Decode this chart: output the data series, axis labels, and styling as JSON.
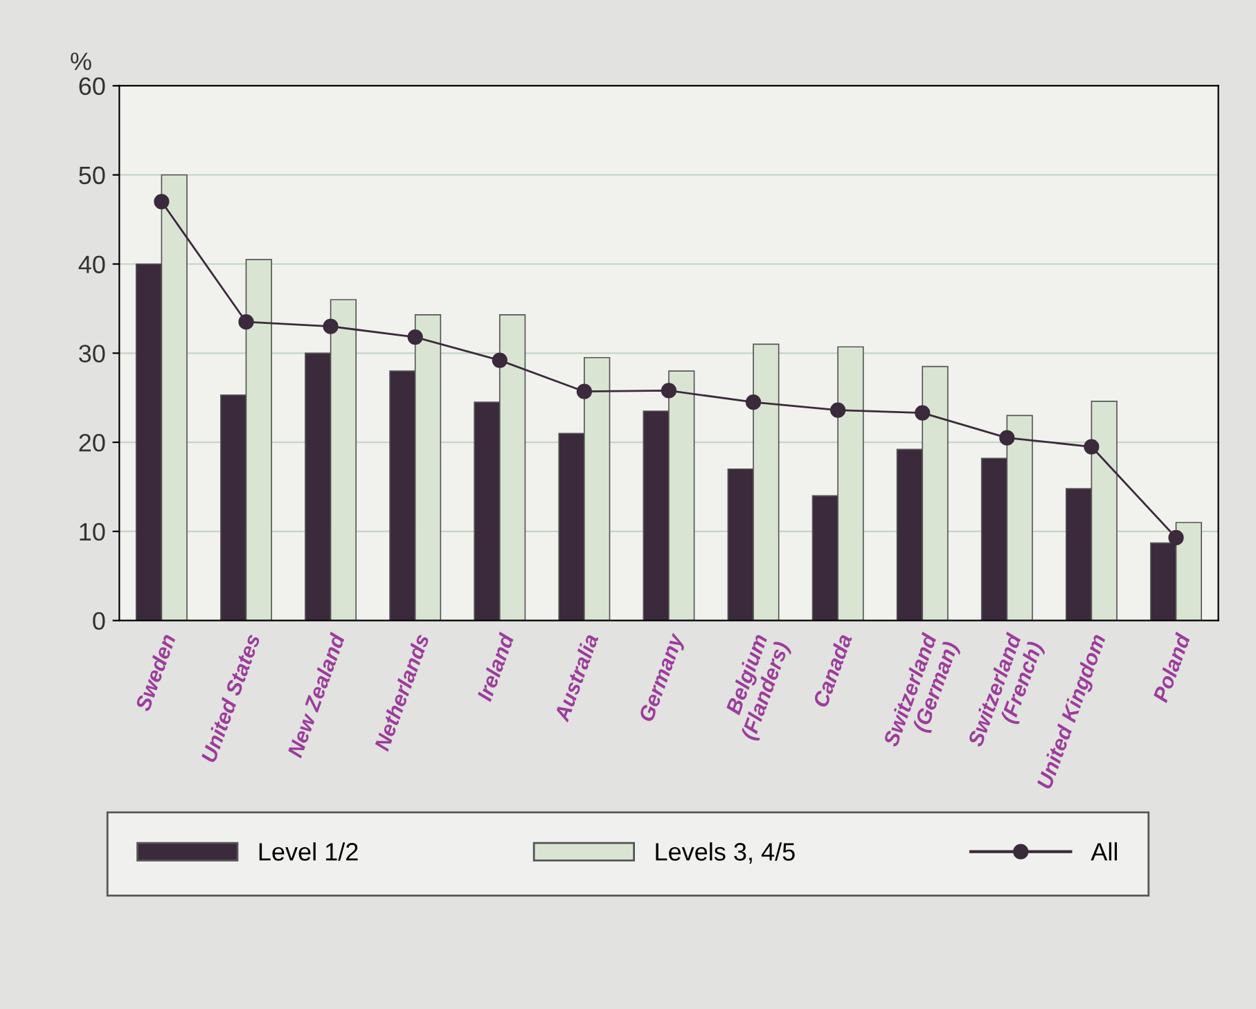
{
  "chart_data": {
    "type": "bar",
    "ylabel": "%",
    "categories": [
      "Sweden",
      "United States",
      "New Zealand",
      "Netherlands",
      "Ireland",
      "Australia",
      "Germany",
      "Belgium\n(Flanders)",
      "Canada",
      "Switzerland\n(German)",
      "Switzerland\n(French)",
      "United Kingdom",
      "Poland"
    ],
    "series": [
      {
        "name": "Level 1/2",
        "color": "#3b2a3b",
        "values": [
          40,
          25.3,
          30,
          28,
          24.5,
          21,
          23.5,
          17,
          14,
          19.2,
          18.2,
          14.8,
          8.7
        ]
      },
      {
        "name": "Levels 3, 4/5",
        "color": "#d9e5d2",
        "values": [
          50,
          40.5,
          36,
          34.3,
          34.3,
          29.5,
          28,
          31,
          30.7,
          28.5,
          23,
          24.6,
          11
        ]
      },
      {
        "name": "All",
        "type": "line",
        "color": "#3b2a3b",
        "marker": "circle",
        "values": [
          47,
          33.5,
          33,
          31.8,
          29.2,
          25.7,
          25.8,
          24.5,
          23.6,
          23.3,
          20.5,
          19.5,
          9.3
        ]
      }
    ],
    "ylim": [
      0,
      60
    ],
    "yticks": [
      0,
      10,
      20,
      30,
      40,
      50,
      60
    ],
    "grid": "y",
    "legend": "bottom"
  }
}
